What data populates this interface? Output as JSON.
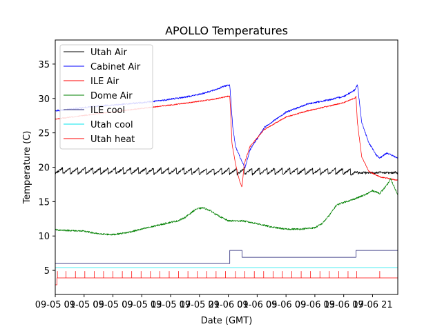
{
  "chart_data": {
    "type": "line",
    "title": "APOLLO Temperatures",
    "xlabel": "Date (GMT)",
    "ylabel": "Temperature (C)",
    "xlim": [
      0,
      47.5
    ],
    "ylim": [
      1.5,
      38.5
    ],
    "grid": false,
    "legend_position": "top-left",
    "x_ticks": [
      {
        "x": 0,
        "label": "09-05 01"
      },
      {
        "x": 4,
        "label": "09-05 05"
      },
      {
        "x": 8,
        "label": "09-05 09"
      },
      {
        "x": 12,
        "label": "09-05 13"
      },
      {
        "x": 16,
        "label": "09-05 17"
      },
      {
        "x": 20,
        "label": "09-05 21"
      },
      {
        "x": 24,
        "label": "09-06 01"
      },
      {
        "x": 28,
        "label": "09-06 05"
      },
      {
        "x": 32,
        "label": "09-06 09"
      },
      {
        "x": 36,
        "label": "09-06 13"
      },
      {
        "x": 40,
        "label": "09-06 17"
      },
      {
        "x": 44,
        "label": "09-06 21"
      }
    ],
    "x_ticks_display": [
      "09-05 01",
      "09-05 05",
      "09-05 09",
      "09-05 13",
      "09-05 17",
      "09-05 21",
      "09-06 01",
      "09-06 05",
      "09-06 09",
      "09-06 13",
      "09-06 17",
      "09-06 21"
    ],
    "y_ticks": [
      5,
      10,
      15,
      20,
      25,
      30,
      35
    ],
    "series": [
      {
        "name": "Utah Air",
        "color": "#000000",
        "style": "sawtooth",
        "base": 19.4,
        "amplitude": 0.9,
        "period": 1.05,
        "noise": 0.15,
        "x": [
          0,
          20,
          40,
          41.6,
          47.5
        ],
        "values": [
          19.5,
          19.4,
          19.4,
          19.2,
          19.2
        ]
      },
      {
        "name": "Cabinet Air",
        "color": "#0000ff",
        "style": "line",
        "noise": 0.12,
        "x": [
          0,
          6,
          10,
          14,
          18,
          20,
          22,
          23.5,
          24.2,
          24.3,
          24.6,
          25,
          25.8,
          26.3,
          27,
          29,
          32,
          35,
          38,
          40,
          41.5,
          41.9,
          42.5,
          43.5,
          44.5,
          45,
          46,
          47.5
        ],
        "values": [
          28.2,
          28.9,
          29.2,
          29.6,
          30.2,
          30.6,
          31.2,
          31.8,
          32.0,
          30.5,
          26,
          23,
          21,
          19.9,
          22.5,
          25.8,
          28.0,
          29.2,
          29.8,
          30.3,
          31.2,
          32.0,
          26.5,
          23.5,
          21.8,
          21.3,
          22.1,
          21.3
        ]
      },
      {
        "name": "ILE Air",
        "color": "#ff0000",
        "style": "line",
        "noise": 0.08,
        "x": [
          0,
          6,
          10,
          14,
          18,
          20,
          22,
          23.5,
          24.2,
          24.3,
          24.5,
          25,
          25.5,
          25.9,
          26.2,
          27,
          29,
          32,
          35,
          38,
          40,
          41.6,
          41.7,
          41.9,
          42.5,
          43.5,
          45,
          47.5
        ],
        "values": [
          27.0,
          27.8,
          28.3,
          28.8,
          29.3,
          29.6,
          29.9,
          30.2,
          30.4,
          28.5,
          23.5,
          20.5,
          18.2,
          17.1,
          20.5,
          23.0,
          25.5,
          27.3,
          28.2,
          28.9,
          29.4,
          30.1,
          30.3,
          26.5,
          21.5,
          19.4,
          18.6,
          18.1
        ]
      },
      {
        "name": "Dome Air",
        "color": "#008000",
        "style": "line",
        "noise": 0.12,
        "x": [
          0,
          4,
          6,
          8,
          10,
          12,
          14,
          16,
          17,
          18,
          19.5,
          20.5,
          21.5,
          22.5,
          24,
          26,
          28,
          30,
          32,
          34,
          36,
          37,
          38,
          39,
          40,
          41,
          42,
          43,
          43.5,
          44,
          45,
          46,
          46.5,
          47.5
        ],
        "values": [
          10.9,
          10.7,
          10.3,
          10.2,
          10.5,
          11.0,
          11.5,
          12.0,
          12.2,
          12.7,
          13.9,
          14.1,
          13.7,
          13.0,
          12.2,
          12.2,
          11.8,
          11.3,
          11.0,
          11.0,
          11.2,
          11.8,
          13.0,
          14.5,
          14.9,
          15.2,
          15.6,
          16.0,
          16.3,
          16.6,
          16.2,
          17.4,
          18.3,
          16.0
        ]
      },
      {
        "name": "ILE cool",
        "color": "#191970",
        "style": "step",
        "x": [
          0,
          24.2,
          24.2,
          25.9,
          25.9,
          41.7,
          41.7,
          47.5
        ],
        "values": [
          6.0,
          6.0,
          7.9,
          7.9,
          6.9,
          6.9,
          7.9,
          7.9
        ]
      },
      {
        "name": "Utah cool",
        "color": "#00e5ee",
        "style": "line",
        "x": [
          0,
          47.5
        ],
        "values": [
          5.4,
          5.4
        ]
      },
      {
        "name": "Utah heat",
        "color": "#ff0000",
        "style": "pulses",
        "base": 3.9,
        "x": [
          0,
          0.25,
          0.25,
          47.5
        ],
        "values": [
          2.9,
          2.9,
          3.9,
          3.9
        ],
        "pulse_height": 1.0,
        "pulse_times": [
          0.3,
          1.5,
          2.8,
          4.1,
          5.4,
          6.7,
          8.0,
          9.3,
          10.6,
          11.9,
          13.2,
          14.5,
          15.8,
          17.1,
          18.4,
          19.7,
          21.0,
          22.3,
          23.6,
          25.0,
          26.3,
          27.6,
          28.9,
          30.2,
          31.5,
          32.8,
          34.1,
          35.4,
          36.7,
          38.0,
          39.3,
          40.6,
          41.8,
          45.0
        ]
      }
    ]
  }
}
